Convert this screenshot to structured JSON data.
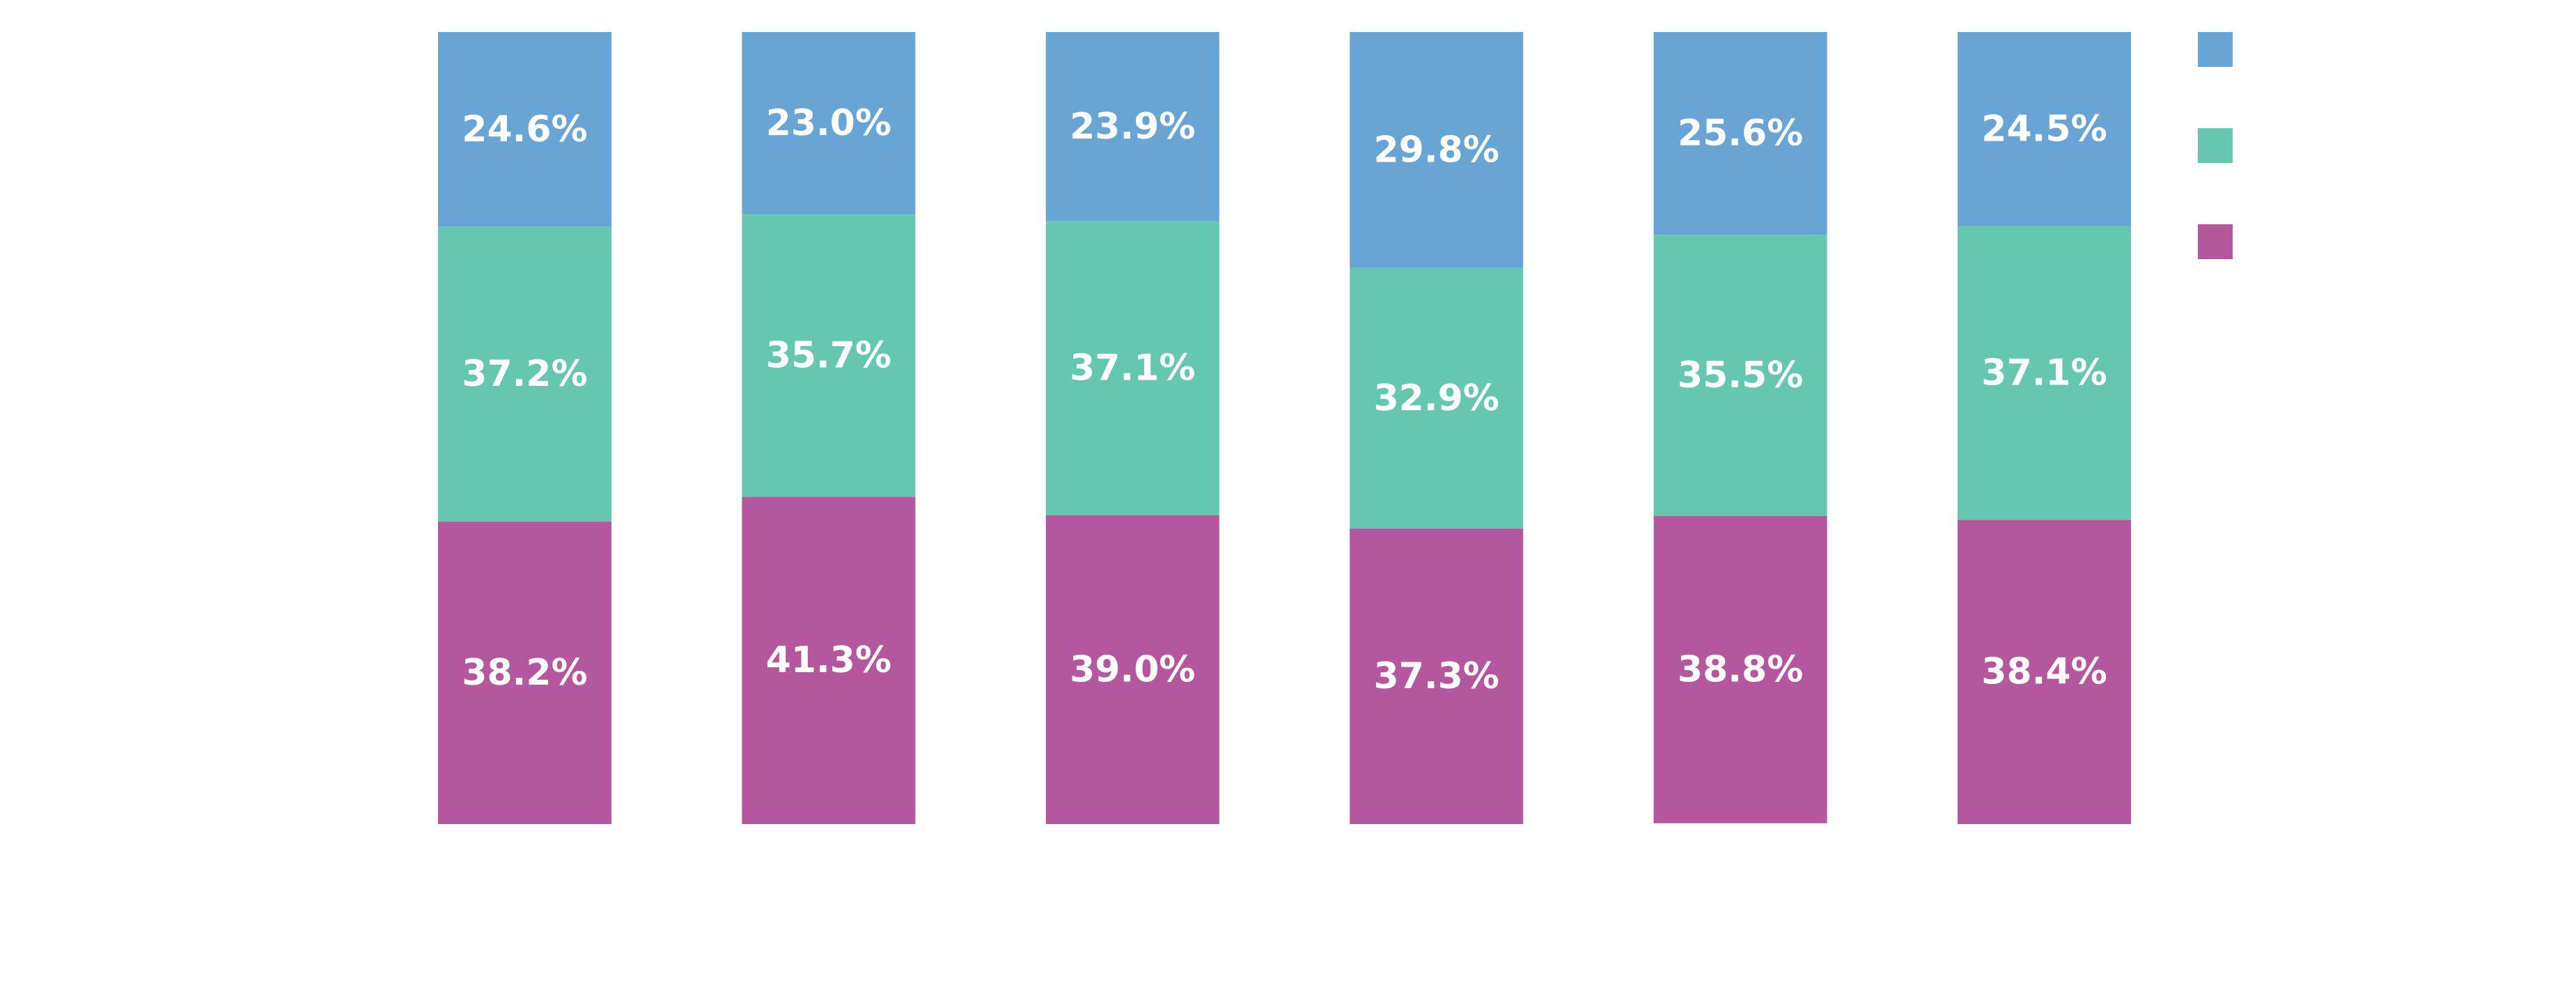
{
  "chart_data": {
    "type": "bar",
    "stacked": true,
    "normalized": true,
    "categories": [
      "",
      "",
      "",
      "",
      "",
      ""
    ],
    "series": [
      {
        "name": "",
        "color": "#68a5d5",
        "values": [
          24.6,
          23.0,
          23.9,
          29.8,
          25.6,
          24.5
        ],
        "labels": [
          "24.6%",
          "23.0%",
          "23.9%",
          "29.8%",
          "25.6%",
          "24.5%"
        ]
      },
      {
        "name": "",
        "color": "#66c7b0",
        "values": [
          37.2,
          35.7,
          37.1,
          32.9,
          35.5,
          37.1
        ],
        "labels": [
          "37.2%",
          "35.7%",
          "37.1%",
          "32.9%",
          "35.5%",
          "37.1%"
        ]
      },
      {
        "name": "",
        "color": "#b5579f",
        "values": [
          38.2,
          41.3,
          39.0,
          37.3,
          38.8,
          38.4
        ],
        "labels": [
          "38.2%",
          "41.3%",
          "39.0%",
          "37.3%",
          "38.8%",
          "38.4%"
        ]
      }
    ],
    "ylim": [
      0,
      100
    ],
    "title": "",
    "xlabel": "",
    "ylabel": "",
    "grid": false,
    "legend_position": "top-right",
    "data_labels": true
  }
}
